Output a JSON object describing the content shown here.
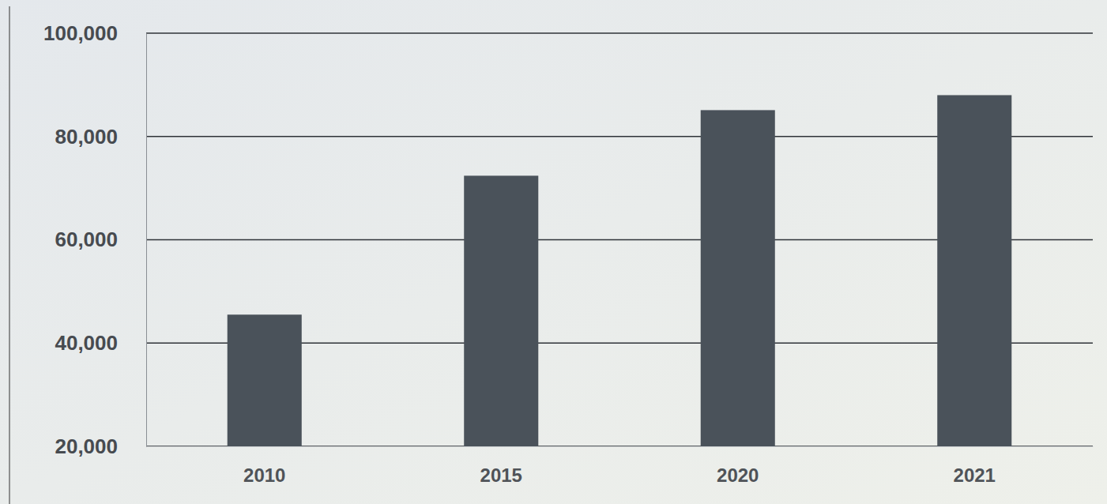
{
  "chart_data": {
    "type": "bar",
    "categories": [
      "2010",
      "2015",
      "2020",
      "2021"
    ],
    "values": [
      45500,
      72400,
      85100,
      88000
    ],
    "color": "#4a525a",
    "ylim": [
      20000,
      100000
    ],
    "yticks": [
      {
        "value": 20000,
        "label": "20,000"
      },
      {
        "value": 40000,
        "label": "40,000"
      },
      {
        "value": 60000,
        "label": "60,000"
      },
      {
        "value": 80000,
        "label": "80,000"
      },
      {
        "value": 100000,
        "label": "100,000"
      }
    ],
    "grid": true
  }
}
